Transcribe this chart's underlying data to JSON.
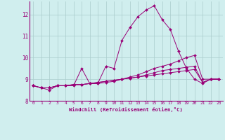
{
  "xlabel": "Windchill (Refroidissement éolien,°C)",
  "bg_color": "#d0eeee",
  "grid_color": "#aacccc",
  "line_color": "#990077",
  "xlim": [
    -0.5,
    23.5
  ],
  "ylim": [
    8.0,
    12.6
  ],
  "yticks": [
    8,
    9,
    10,
    11,
    12
  ],
  "xticks": [
    0,
    1,
    2,
    3,
    4,
    5,
    6,
    7,
    8,
    9,
    10,
    11,
    12,
    13,
    14,
    15,
    16,
    17,
    18,
    19,
    20,
    21,
    22,
    23
  ],
  "series": [
    [
      8.7,
      8.6,
      8.5,
      8.7,
      8.7,
      8.7,
      9.5,
      8.8,
      8.8,
      9.6,
      9.5,
      10.8,
      11.4,
      11.9,
      12.2,
      12.4,
      11.75,
      11.3,
      10.3,
      9.5,
      9.0,
      8.8,
      9.0,
      9.0
    ],
    [
      8.7,
      8.6,
      8.6,
      8.7,
      8.7,
      8.75,
      8.75,
      8.8,
      8.8,
      8.85,
      8.9,
      9.0,
      9.1,
      9.2,
      9.35,
      9.5,
      9.6,
      9.7,
      9.85,
      10.0,
      10.1,
      9.0,
      9.0,
      9.0
    ],
    [
      8.7,
      8.6,
      8.6,
      8.7,
      8.7,
      8.75,
      8.75,
      8.8,
      8.85,
      8.9,
      8.95,
      9.0,
      9.05,
      9.1,
      9.2,
      9.3,
      9.4,
      9.45,
      9.5,
      9.55,
      9.6,
      8.85,
      9.0,
      9.0
    ],
    [
      8.7,
      8.6,
      8.6,
      8.7,
      8.7,
      8.75,
      8.75,
      8.8,
      8.85,
      8.9,
      8.95,
      9.0,
      9.05,
      9.1,
      9.15,
      9.2,
      9.25,
      9.3,
      9.35,
      9.4,
      9.45,
      8.85,
      9.0,
      9.0
    ]
  ]
}
